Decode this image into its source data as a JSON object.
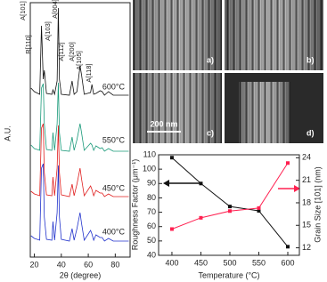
{
  "chart_data": [
    {
      "type": "line",
      "xlabel": "2θ (degree)",
      "ylabel": "A.U.",
      "x": [
        17.5,
        20,
        24,
        25.3,
        26.6,
        27.4,
        29,
        33,
        33.8,
        35,
        36.9,
        37.8,
        38.6,
        40,
        46,
        48,
        49.5,
        51.6,
        53.9,
        55,
        57,
        61.7,
        62.7,
        64,
        65.7,
        68.8,
        70.3,
        72,
        75,
        78.5,
        81,
        84,
        88,
        90
      ],
      "xlim": [
        17,
        91
      ],
      "xticks": [
        20,
        40,
        60,
        80
      ],
      "ylim": [
        0,
        286
      ],
      "series": [
        {
          "name": "600°C",
          "color": "#111111",
          "values": [
            190,
            186,
            183,
            260,
            200,
            210,
            184,
            183,
            188,
            183,
            198,
            280,
            200,
            183,
            182,
            198,
            183,
            186,
            215,
            205,
            183,
            185,
            194,
            183,
            184,
            187,
            186,
            182,
            186,
            182,
            182,
            182,
            182,
            182
          ]
        },
        {
          "name": "550°C",
          "color": "#1a9a7a",
          "values": [
            126,
            122,
            120,
            190,
            195,
            150,
            121,
            120,
            140,
            120,
            150,
            196,
            140,
            120,
            119,
            135,
            120,
            132,
            150,
            140,
            120,
            128,
            126,
            120,
            125,
            122,
            123,
            119,
            122,
            119,
            119,
            119,
            119,
            119
          ]
        },
        {
          "name": "450°C",
          "color": "#e02020",
          "values": [
            74,
            71,
            69,
            145,
            150,
            95,
            70,
            69,
            90,
            69,
            100,
            148,
            95,
            70,
            68,
            82,
            69,
            82,
            100,
            88,
            69,
            80,
            76,
            69,
            75,
            72,
            72,
            68,
            71,
            68,
            68,
            68,
            68,
            68
          ]
        },
        {
          "name": "400°C",
          "color": "#2233cc",
          "values": [
            24,
            21,
            19,
            100,
            105,
            45,
            20,
            19,
            40,
            19,
            50,
            103,
            45,
            20,
            18,
            32,
            19,
            32,
            50,
            38,
            19,
            30,
            26,
            19,
            25,
            22,
            22,
            18,
            21,
            18,
            18,
            18,
            18,
            18
          ]
        }
      ],
      "annotations": [
        "A[101]",
        "R[110]",
        "A[103]",
        "A[004]",
        "A[112]",
        "A[200]",
        "A[105]",
        "A[118]"
      ]
    },
    {
      "type": "line",
      "xlabel": "Temperature (°C)",
      "ylabel": "Roughness Factor (μm⁻¹)",
      "y2label": "Grain Size [101] (nm)",
      "x": [
        400,
        450,
        500,
        550,
        600
      ],
      "xlim": [
        377,
        620
      ],
      "xticks": [
        400,
        450,
        500,
        550,
        600
      ],
      "ylim": [
        40,
        110
      ],
      "yticks": [
        40,
        50,
        60,
        70,
        80,
        90,
        100,
        110
      ],
      "y2lim": [
        11.0,
        24.4
      ],
      "y2ticks": [
        12,
        15,
        18,
        21,
        24
      ],
      "markers": "square",
      "series": [
        {
          "color": "#111111",
          "values": [
            108,
            90,
            74,
            71,
            46
          ]
        },
        {
          "color": "#ff2050",
          "axis": "y2",
          "values": [
            14.5,
            16.0,
            16.9,
            17.3,
            23.3
          ]
        }
      ]
    }
  ],
  "sem_images": {
    "labels": [
      "a)",
      "b)",
      "c)",
      "d)"
    ],
    "scale_bar": "200 nm"
  }
}
